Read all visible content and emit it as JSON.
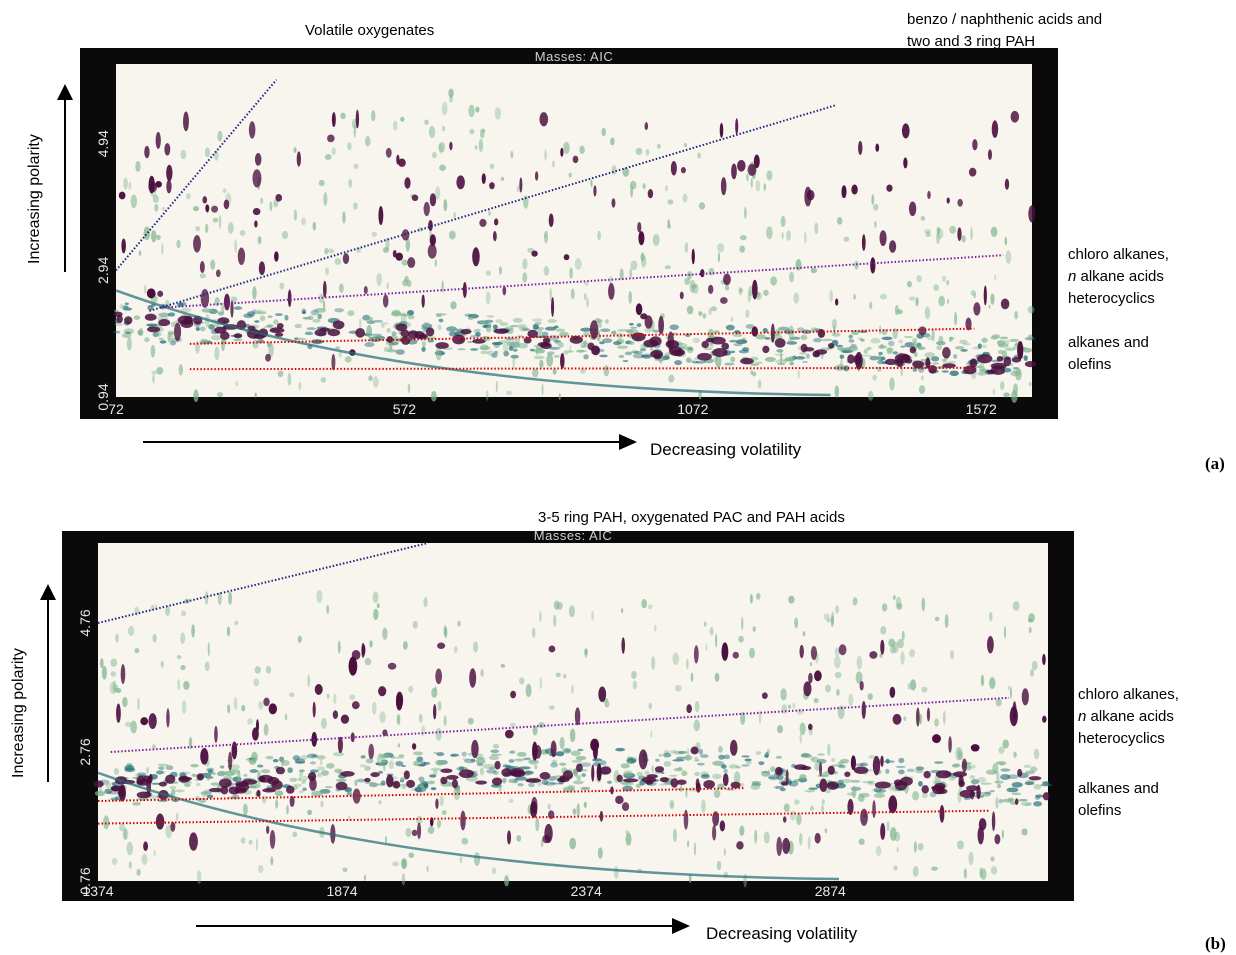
{
  "colors": {
    "background": "#ffffff",
    "plot_frame": "#0a0a0a",
    "plot_bg": "#f8f5ef",
    "peak_dark": "#4a0f3e",
    "peak_mid": "#1f6b73",
    "peak_light": "#7fb58e",
    "line_blue": "#1a237e",
    "line_purple": "#7b1fa2",
    "line_red": "#d50000"
  },
  "chart_data": [
    {
      "panel": "(a)",
      "type": "heatmap",
      "title": "Masses: AIC",
      "xlabel": "Decreasing volatility",
      "ylabel": "Increasing polarity",
      "x_ticks": [
        "72",
        "572",
        "1072",
        "1572"
      ],
      "y_ticks": [
        "0.94",
        "2.94",
        "4.94"
      ],
      "xlim": [
        72,
        1660
      ],
      "ylim": [
        0.94,
        6.2
      ],
      "region_labels": {
        "top_left": "Volatile oxygenates",
        "top_right": [
          "benzo / naphthenic acids and",
          "two and 3 ring PAH"
        ],
        "mid_right": [
          "chloro alkanes,",
          "n alkane acids",
          "heterocyclics"
        ],
        "mid_right_italic": "n",
        "mid_right_rest": " alkane acids",
        "low_right": [
          "alkanes and",
          "olefins"
        ]
      },
      "annotation_lines": [
        {
          "name": "volatile-oxygenates-boundary",
          "color": "blue",
          "x": [
            72,
            350
          ],
          "y": [
            2.94,
            5.95
          ]
        },
        {
          "name": "pah-boundary",
          "color": "blue",
          "x": [
            130,
            1320
          ],
          "y": [
            2.3,
            5.55
          ]
        },
        {
          "name": "chloro-alkanes-boundary",
          "color": "purple",
          "x": [
            150,
            1610
          ],
          "y": [
            2.35,
            3.18
          ]
        },
        {
          "name": "alkanes-upper-boundary",
          "color": "red",
          "x": [
            200,
            1560
          ],
          "y": [
            1.78,
            2.02
          ]
        },
        {
          "name": "alkanes-lower-boundary",
          "color": "red",
          "x": [
            200,
            1560
          ],
          "y": [
            1.38,
            1.4
          ]
        }
      ]
    },
    {
      "panel": "(b)",
      "type": "heatmap",
      "title": "Masses: AIC",
      "xlabel": "Decreasing volatility",
      "ylabel": "Increasing polarity",
      "x_ticks": [
        "1374",
        "1874",
        "2374",
        "2874"
      ],
      "y_ticks": [
        "0.76",
        "2.76",
        "4.76"
      ],
      "xlim": [
        1374,
        3320
      ],
      "ylim": [
        0.76,
        6.0
      ],
      "region_labels": {
        "top_center": "3-5 ring PAH, oxygenated PAC and PAH acids",
        "mid_right": [
          "chloro alkanes,",
          "n alkane acids",
          "heterocyclics"
        ],
        "mid_right_italic": "n",
        "mid_right_rest": " alkane acids",
        "low_right": [
          "alkanes and",
          "olefins"
        ]
      },
      "annotation_lines": [
        {
          "name": "pah-boundary",
          "color": "blue",
          "x": [
            1374,
            2050
          ],
          "y": [
            4.76,
            6.0
          ]
        },
        {
          "name": "chloro-alkanes-boundary",
          "color": "purple",
          "x": [
            1400,
            3240
          ],
          "y": [
            2.76,
            3.6
          ]
        },
        {
          "name": "alkanes-upper-boundary",
          "color": "red",
          "x": [
            1374,
            2700
          ],
          "y": [
            2.0,
            2.2
          ]
        },
        {
          "name": "alkanes-lower-boundary",
          "color": "red",
          "x": [
            1374,
            3200
          ],
          "y": [
            1.65,
            1.85
          ]
        }
      ]
    }
  ],
  "panel_tags": {
    "a": "(a)",
    "b": "(b)"
  }
}
